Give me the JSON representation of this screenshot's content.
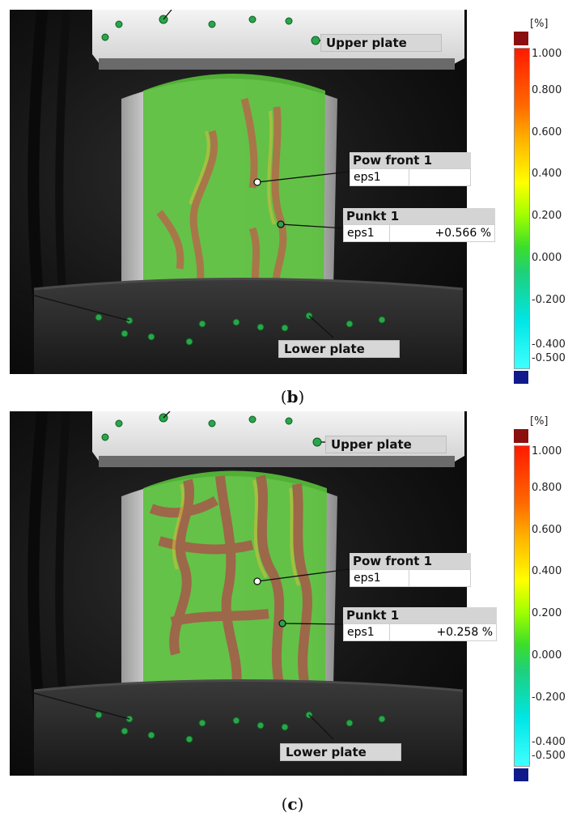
{
  "panels": [
    {
      "id": "b",
      "caption_open": "(",
      "caption_letter": "b",
      "caption_close": ")",
      "upper_plate": "Upper plate",
      "lower_plate": "Lower plate",
      "pow_front": {
        "title": "Pow front 1",
        "key": "eps1",
        "value": ""
      },
      "punkt": {
        "title": "Punkt 1",
        "key": "eps1",
        "value": "+0.566 %"
      },
      "strain_bands": "moderate"
    },
    {
      "id": "c",
      "caption_open": "(",
      "caption_letter": "c",
      "caption_close": ")",
      "upper_plate": "Upper plate",
      "lower_plate": "Lower plate",
      "pow_front": {
        "title": "Pow front 1",
        "key": "eps1",
        "value": ""
      },
      "punkt": {
        "title": "Punkt 1",
        "key": "eps1",
        "value": "+0.258 %"
      },
      "strain_bands": "extensive"
    }
  ],
  "scale": {
    "unit": "[%]",
    "ticks": [
      "1.000",
      "0.800",
      "0.600",
      "0.400",
      "0.200",
      "0.000",
      "-0.200",
      "-0.400",
      "-0.500"
    ],
    "cap_top_color": "#8b0f0f",
    "cap_bottom_color": "#101a8a"
  }
}
